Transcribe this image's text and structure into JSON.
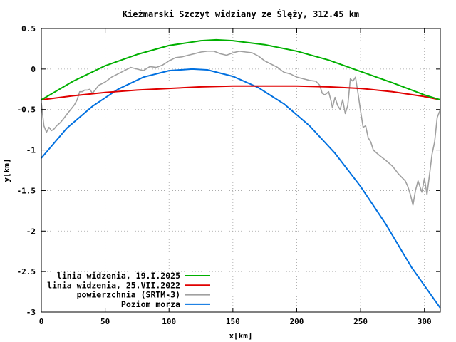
{
  "chart_data": {
    "type": "line",
    "title": "Kieżmarski Szczyt widziany ze Ślęży, 312.45 km",
    "xlabel": "x[km]",
    "ylabel": "y[km]",
    "xlim": [
      0,
      312.45
    ],
    "ylim": [
      -3,
      0.5
    ],
    "xticks": [
      0,
      50,
      100,
      150,
      200,
      250,
      300
    ],
    "xtick_labels": [
      "0",
      "50",
      "100",
      "150",
      "200",
      "250",
      "300"
    ],
    "yticks": [
      0.5,
      0,
      -0.5,
      -1,
      -1.5,
      -2,
      -2.5,
      -3
    ],
    "ytick_labels": [
      "0.5",
      "0",
      "-0.5",
      "-1",
      "-1.5",
      "-2",
      "-2.5",
      "-3"
    ],
    "grid": true,
    "legend_position": "bottom-left",
    "series": [
      {
        "name": "linia widzenia, 19.I.2025",
        "color": "#00b000",
        "x": [
          0,
          25,
          50,
          75,
          100,
          125,
          137,
          150,
          175,
          200,
          225,
          250,
          275,
          300,
          312.45
        ],
        "y": [
          -0.38,
          -0.15,
          0.04,
          0.18,
          0.29,
          0.35,
          0.36,
          0.35,
          0.3,
          0.22,
          0.11,
          -0.03,
          -0.17,
          -0.32,
          -0.38
        ]
      },
      {
        "name": "linia widzenia, 25.VII.2022",
        "color": "#e00000",
        "x": [
          0,
          25,
          50,
          75,
          100,
          125,
          150,
          175,
          200,
          225,
          250,
          275,
          300,
          312.45
        ],
        "y": [
          -0.38,
          -0.33,
          -0.29,
          -0.26,
          -0.24,
          -0.22,
          -0.21,
          -0.21,
          -0.21,
          -0.22,
          -0.24,
          -0.28,
          -0.34,
          -0.38
        ]
      },
      {
        "name": "powierzchnia (SRTM-3)",
        "color": "#a0a0a0",
        "x": [
          0,
          2,
          4,
          6,
          8,
          10,
          12,
          15,
          18,
          20,
          23,
          26,
          28,
          30,
          32,
          34,
          36,
          38,
          40,
          45,
          50,
          55,
          60,
          65,
          70,
          75,
          80,
          85,
          90,
          95,
          100,
          105,
          110,
          115,
          120,
          125,
          130,
          135,
          140,
          145,
          150,
          155,
          160,
          165,
          170,
          175,
          180,
          185,
          190,
          195,
          200,
          205,
          210,
          215,
          218,
          220,
          222,
          225,
          227,
          228,
          230,
          232,
          234,
          236,
          238,
          240,
          242,
          244,
          246,
          248,
          250,
          252,
          254,
          256,
          258,
          260,
          265,
          270,
          275,
          280,
          285,
          287,
          289,
          291,
          293,
          295,
          298,
          300,
          302,
          304,
          306,
          308,
          310,
          312.45
        ],
        "y": [
          -0.42,
          -0.7,
          -0.78,
          -0.72,
          -0.76,
          -0.74,
          -0.7,
          -0.66,
          -0.6,
          -0.56,
          -0.5,
          -0.44,
          -0.38,
          -0.28,
          -0.28,
          -0.26,
          -0.26,
          -0.25,
          -0.3,
          -0.2,
          -0.16,
          -0.1,
          -0.06,
          -0.02,
          0.02,
          0.0,
          -0.02,
          0.03,
          0.02,
          0.05,
          0.1,
          0.14,
          0.15,
          0.17,
          0.19,
          0.21,
          0.22,
          0.22,
          0.19,
          0.17,
          0.2,
          0.22,
          0.21,
          0.2,
          0.16,
          0.1,
          0.06,
          0.02,
          -0.04,
          -0.06,
          -0.1,
          -0.12,
          -0.14,
          -0.15,
          -0.2,
          -0.3,
          -0.32,
          -0.28,
          -0.4,
          -0.48,
          -0.35,
          -0.45,
          -0.5,
          -0.38,
          -0.55,
          -0.45,
          -0.12,
          -0.15,
          -0.1,
          -0.3,
          -0.52,
          -0.72,
          -0.7,
          -0.85,
          -0.9,
          -1.0,
          -1.07,
          -1.13,
          -1.2,
          -1.3,
          -1.38,
          -1.45,
          -1.55,
          -1.68,
          -1.5,
          -1.38,
          -1.52,
          -1.35,
          -1.55,
          -1.3,
          -1.05,
          -0.9,
          -0.6,
          -0.5
        ]
      },
      {
        "name": "Poziom morza",
        "color": "#0070e0",
        "x": [
          0,
          20,
          40,
          60,
          80,
          100,
          118,
          130,
          150,
          170,
          190,
          210,
          230,
          250,
          270,
          290,
          312.45
        ],
        "y": [
          -1.1,
          -0.73,
          -0.46,
          -0.25,
          -0.1,
          -0.02,
          0.0,
          -0.01,
          -0.09,
          -0.23,
          -0.43,
          -0.7,
          -1.04,
          -1.45,
          -1.92,
          -2.45,
          -2.95
        ]
      }
    ]
  }
}
